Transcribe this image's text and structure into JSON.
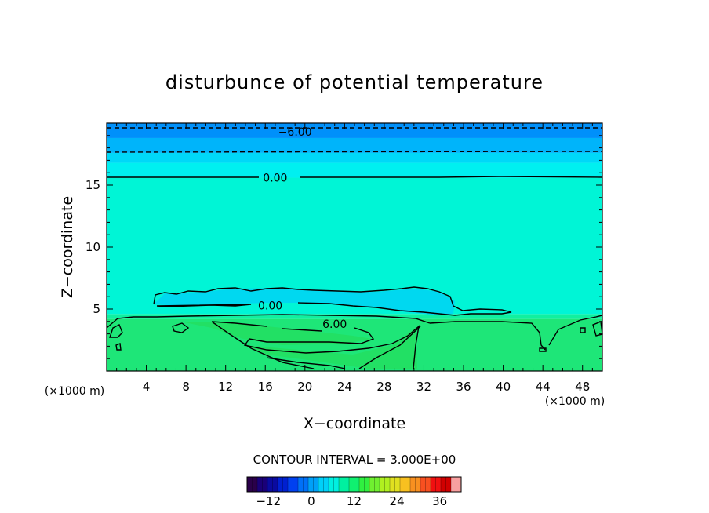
{
  "chart_data": {
    "type": "contour",
    "title": "disturbunce of potential temperature",
    "xlabel": "X−coordinate",
    "ylabel": "Z−coordinate",
    "x_unit_left": "(×1000 m)",
    "x_unit_right": "(×1000 m)",
    "xlim": [
      0,
      50
    ],
    "ylim": [
      0,
      20
    ],
    "x_ticks": [
      4,
      8,
      12,
      16,
      20,
      24,
      28,
      32,
      36,
      40,
      44,
      48
    ],
    "y_ticks": [
      5,
      10,
      15
    ],
    "contour_interval_text": "CONTOUR INTERVAL = 3.000E+00",
    "contour_labels": [
      {
        "text": "−6.00",
        "x": 19.0,
        "y": 19.3
      },
      {
        "text": "0.00",
        "x": 17.0,
        "y": 15.6
      },
      {
        "text": "0.00",
        "x": 16.5,
        "y": 5.3
      },
      {
        "text": "6.00",
        "x": 23.0,
        "y": 3.8
      }
    ],
    "field_bands": [
      {
        "z0": 0.0,
        "z1": 4.2,
        "value": 7,
        "color": "#1ee678"
      },
      {
        "z0": 4.2,
        "z1": 4.6,
        "value": 4,
        "color": "#10f0a0"
      },
      {
        "z0": 4.6,
        "z1": 15.6,
        "value": 1,
        "color": "#00f5d6"
      },
      {
        "z0": 15.6,
        "z1": 16.8,
        "value": -1,
        "color": "#00f0f0"
      },
      {
        "z0": 16.8,
        "z1": 17.6,
        "value": -3,
        "color": "#00d8f8"
      },
      {
        "z0": 17.6,
        "z1": 18.8,
        "value": -5,
        "color": "#00b4fa"
      },
      {
        "z0": 18.8,
        "z1": 20.0,
        "value": -7,
        "color": "#0090fa"
      }
    ],
    "colorbar": {
      "min": -18,
      "max": 42,
      "tick_labels": [
        "−12",
        "0",
        "12",
        "24",
        "36"
      ],
      "tick_values": [
        -12,
        0,
        12,
        24,
        36
      ],
      "colors": [
        "#2a004a",
        "#1a0078",
        "#0a0aa0",
        "#0020d0",
        "#0040f0",
        "#0070f8",
        "#00a0f8",
        "#00d0f8",
        "#00f0e0",
        "#00f0a0",
        "#10f070",
        "#30f040",
        "#70f030",
        "#b0f020",
        "#e0e020",
        "#f8c020",
        "#f89020",
        "#f85020",
        "#f01010",
        "#d00000",
        "#f8a0a0"
      ]
    }
  }
}
